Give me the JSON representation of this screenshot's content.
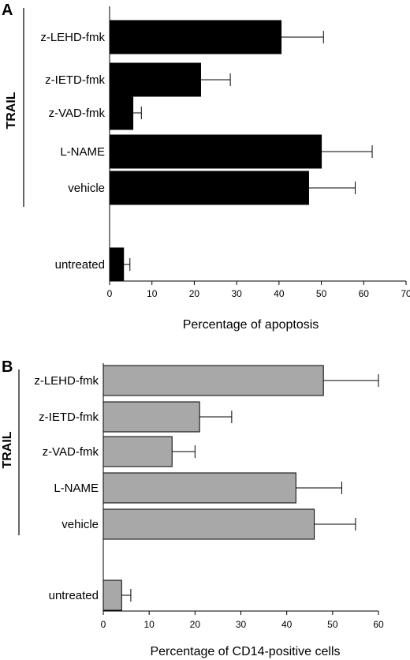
{
  "chart_data": [
    {
      "type": "bar",
      "orientation": "horizontal",
      "panel_label": "A",
      "group_label": "TRAIL",
      "categories": [
        "z-LEHD-fmk",
        "z-IETD-fmk",
        "z-VAD-fmk",
        "L-NAME",
        "vehicle",
        "untreated"
      ],
      "values": [
        40.5,
        21.5,
        5.5,
        50,
        47,
        3.3
      ],
      "errors": [
        10,
        7,
        2,
        12,
        11,
        1.5
      ],
      "bar_color": "#000000",
      "xlabel": "Percentage of apoptosis",
      "xlim": [
        0,
        70
      ],
      "xticks": [
        "0",
        "10",
        "20",
        "30",
        "40",
        "50",
        "60",
        "70"
      ],
      "grid": false
    },
    {
      "type": "bar",
      "orientation": "horizontal",
      "panel_label": "B",
      "group_label": "TRAIL",
      "categories": [
        "z-LEHD-fmk",
        "z-IETD-fmk",
        "z-VAD-fmk",
        "L-NAME",
        "vehicle",
        "untreated"
      ],
      "values": [
        48,
        21,
        15,
        42,
        46,
        4
      ],
      "errors": [
        12,
        7,
        5,
        10,
        9,
        2
      ],
      "bar_color": "#a8a8a8",
      "xlabel": "Percentage of CD14-positive cells",
      "xlim": [
        0,
        60
      ],
      "xticks": [
        "0",
        "10",
        "20",
        "30",
        "40",
        "50",
        "60"
      ],
      "grid": false
    }
  ]
}
